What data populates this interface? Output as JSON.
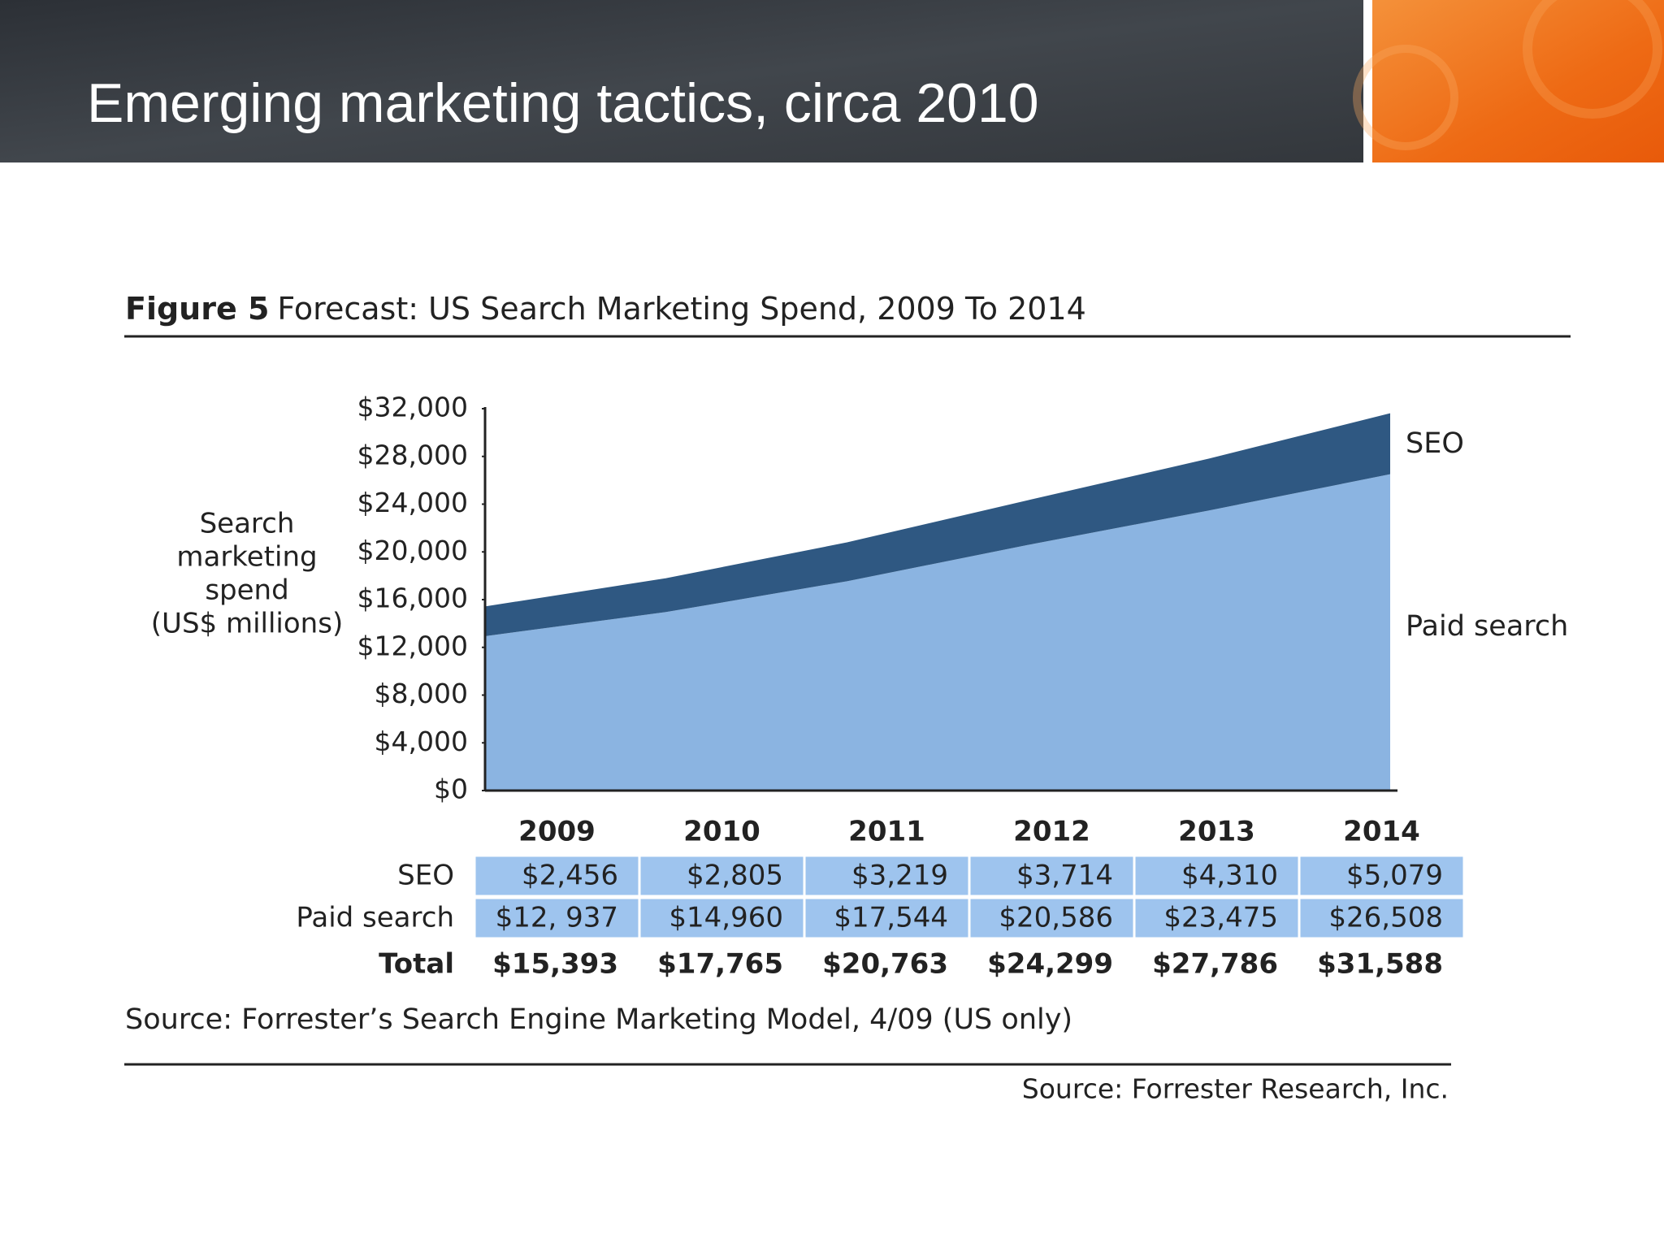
{
  "slide_title": "Emerging marketing tactics, circa 2010",
  "chart_data": {
    "type": "stacked-area",
    "figure_label": "Figure 5",
    "title": "Forecast: US Search Marketing Spend, 2009 To 2014",
    "ylabel_lines": [
      "Search",
      "marketing",
      "spend",
      "(US$ millions)"
    ],
    "categories": [
      "2009",
      "2010",
      "2011",
      "2012",
      "2013",
      "2014"
    ],
    "series": [
      {
        "name": "SEO",
        "color": "#2f5882",
        "values": [
          2456,
          2805,
          3219,
          3714,
          4310,
          5079
        ],
        "value_labels": [
          "$2,456",
          "$2,805",
          "$3,219",
          "$3,714",
          "$4,310",
          "$5,079"
        ]
      },
      {
        "name": "Paid search",
        "color": "#8bb4e1",
        "values": [
          12937,
          14960,
          17544,
          20586,
          23475,
          26508
        ],
        "value_labels": [
          "$12, 937",
          "$14,960",
          "$17,544",
          "$20,586",
          "$23,475",
          "$26,508"
        ]
      }
    ],
    "total": {
      "name": "Total",
      "values": [
        15393,
        17765,
        20763,
        24299,
        27786,
        31588
      ],
      "value_labels": [
        "$15,393",
        "$17,765",
        "$20,763",
        "$24,299",
        "$27,786",
        "$31,588"
      ]
    },
    "ylim": [
      0,
      32000
    ],
    "yticks": [
      {
        "value": 0,
        "label": "$0"
      },
      {
        "value": 4000,
        "label": "$4,000"
      },
      {
        "value": 8000,
        "label": "$8,000"
      },
      {
        "value": 12000,
        "label": "$12,000"
      },
      {
        "value": 16000,
        "label": "$16,000"
      },
      {
        "value": 20000,
        "label": "$20,000"
      },
      {
        "value": 24000,
        "label": "$24,000"
      },
      {
        "value": 28000,
        "label": "$28,000"
      },
      {
        "value": 32000,
        "label": "$32,000"
      }
    ],
    "table_cell_color": "#9ec4ee",
    "source": "Source: Forrester’s Search Engine Marketing Model, 4/09 (US only)"
  },
  "footer_source": "Source: Forrester Research, Inc."
}
